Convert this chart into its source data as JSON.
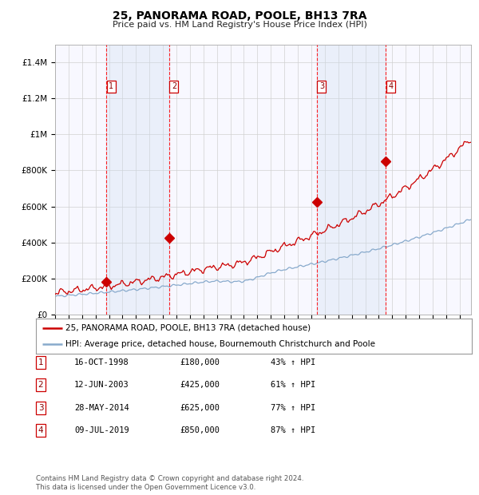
{
  "title": "25, PANORAMA ROAD, POOLE, BH13 7RA",
  "subtitle": "Price paid vs. HM Land Registry's House Price Index (HPI)",
  "ylim": [
    0,
    1500000
  ],
  "yticks": [
    0,
    200000,
    400000,
    600000,
    800000,
    1000000,
    1200000,
    1400000
  ],
  "ytick_labels": [
    "£0",
    "£200K",
    "£400K",
    "£600K",
    "£800K",
    "£1M",
    "£1.2M",
    "£1.4M"
  ],
  "xlim_start": 1995.0,
  "xlim_end": 2025.83,
  "sale_dates": [
    1998.79,
    2003.45,
    2014.41,
    2019.52
  ],
  "sale_prices": [
    180000,
    425000,
    625000,
    850000
  ],
  "sale_labels": [
    "1",
    "2",
    "3",
    "4"
  ],
  "red_line_color": "#cc0000",
  "blue_line_color": "#88aacc",
  "shade_color": "#ccddf0",
  "marker_color": "#cc0000",
  "legend_line1": "25, PANORAMA ROAD, POOLE, BH13 7RA (detached house)",
  "legend_line2": "HPI: Average price, detached house, Bournemouth Christchurch and Poole",
  "table_rows": [
    [
      "1",
      "16-OCT-1998",
      "£180,000",
      "43% ↑ HPI"
    ],
    [
      "2",
      "12-JUN-2003",
      "£425,000",
      "61% ↑ HPI"
    ],
    [
      "3",
      "28-MAY-2014",
      "£625,000",
      "77% ↑ HPI"
    ],
    [
      "4",
      "09-JUL-2019",
      "£850,000",
      "87% ↑ HPI"
    ]
  ],
  "footnote1": "Contains HM Land Registry data © Crown copyright and database right 2024.",
  "footnote2": "This data is licensed under the Open Government Licence v3.0.",
  "background_color": "#ffffff"
}
